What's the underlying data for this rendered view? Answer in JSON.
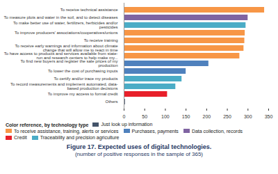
{
  "chart_data": {
    "type": "bar",
    "orientation": "horizontal",
    "title": "Figure 17. Expected uses of digital technologies.",
    "subtitle": "(number of positive responses in the sample of 365)",
    "legend_title": "Color reference, by technology type",
    "legend": "bottom",
    "grid": false,
    "categories": [
      "To receive technical assistance",
      "To measure plots and water in the soil, and to detect diseases",
      "To make better use of water, fertilizers, herbicides and/or pesticides",
      "To improve producers' associations/cooperatives/unions",
      "To receive training",
      "To receive early warnings and information about climate change that will allow me to react in time",
      "To have access to products and services available from state-run and research centers to help make my...",
      "To find new buyers and register the sale prices of my production",
      "To lower the cost of purchasing inputs",
      "To certify and/or trace my products",
      "To record measurements and implement automated, data-based production decisions",
      "To improve my access to formal credit",
      "Others"
    ],
    "series": [
      {
        "name": "Just look up information",
        "color": "#44546a",
        "values": [
          null,
          null,
          null,
          null,
          null,
          null,
          null,
          null,
          null,
          null,
          null,
          null,
          3
        ]
      },
      {
        "name": "To receive assistance, training, alerts or services",
        "color": "#f79646",
        "values": [
          340,
          null,
          null,
          293,
          292,
          290,
          280,
          null,
          null,
          null,
          null,
          null,
          null
        ]
      },
      {
        "name": "Purchases, payments",
        "color": "#4f81bd",
        "values": [
          null,
          null,
          null,
          null,
          null,
          null,
          null,
          205,
          150,
          null,
          null,
          null,
          null
        ]
      },
      {
        "name": "Data collection, records",
        "color": "#8064a2",
        "values": [
          null,
          300,
          null,
          null,
          null,
          null,
          null,
          null,
          null,
          null,
          null,
          null,
          null
        ]
      },
      {
        "name": "Credit",
        "color": "#e8202a",
        "values": [
          null,
          null,
          null,
          null,
          null,
          null,
          null,
          null,
          null,
          null,
          null,
          105,
          null
        ]
      },
      {
        "name": "Traceability and precision agriculture",
        "color": "#4bacc6",
        "values": [
          null,
          null,
          295,
          null,
          null,
          null,
          null,
          null,
          null,
          140,
          125,
          null,
          null
        ]
      }
    ],
    "xlim": [
      0,
      350
    ],
    "xticks": [
      0,
      50,
      100,
      150,
      200,
      250,
      300,
      350
    ]
  }
}
